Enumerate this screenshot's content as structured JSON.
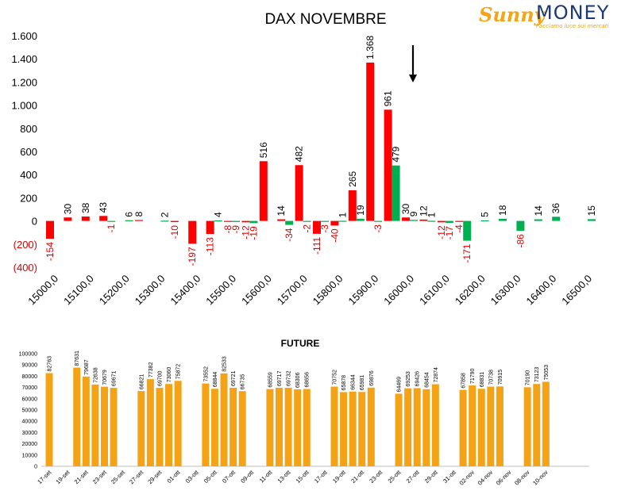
{
  "brand": {
    "name_part1": "Sunny",
    "name_part2": "MONEY",
    "tagline": "Facciamo luce sui mercati"
  },
  "chart_data": [
    {
      "type": "bar",
      "title": "DAX NOVEMBRE",
      "ylim": [
        -400,
        1600
      ],
      "yticks": [
        1600,
        1400,
        1200,
        1000,
        800,
        600,
        400,
        200,
        0,
        -200,
        -400
      ],
      "ytick_labels": [
        "1.600",
        "1.400",
        "1.200",
        "1.000",
        "800",
        "600",
        "400",
        "200",
        "0",
        "(200)",
        "(400)"
      ],
      "xtick_labels": [
        "15000,0",
        "15100,0",
        "15200,0",
        "15300,0",
        "15400,0",
        "15500,0",
        "15600,0",
        "15700,0",
        "15800,0",
        "15900,0",
        "16000,0",
        "16100,0",
        "16200,0",
        "16300,0",
        "16400,0",
        "16500,0"
      ],
      "strikes": [
        15000,
        15050,
        15100,
        15150,
        15200,
        15250,
        15300,
        15350,
        15400,
        15450,
        15500,
        15550,
        15600,
        15650,
        15700,
        15750,
        15800,
        15850,
        15900,
        15950,
        16000,
        16050,
        16100,
        16150,
        16200,
        16250,
        16300,
        16350,
        16400,
        16450,
        16500
      ],
      "series": [
        {
          "color": "#ff0000",
          "values": [
            -154,
            30,
            38,
            43,
            0,
            8,
            0,
            -10,
            -197,
            -113,
            -8,
            -12,
            516,
            14,
            482,
            -111,
            -40,
            265,
            1368,
            961,
            30,
            12,
            -12,
            -4,
            0,
            0,
            0,
            0,
            0,
            0,
            0
          ],
          "labels": [
            "-154",
            "30",
            "38",
            "43",
            "",
            "8",
            "",
            "-10",
            "-197",
            "-113",
            "-8",
            "-12",
            "516",
            "14",
            "482",
            "-111",
            "-40",
            "265",
            "1.368",
            "961",
            "30",
            "12",
            "-12",
            "-4",
            "",
            "",
            "",
            "",
            "",
            "",
            ""
          ]
        },
        {
          "color": "#00b050",
          "values": [
            0,
            0,
            0,
            -1,
            6,
            0,
            2,
            0,
            0,
            4,
            -9,
            -19,
            0,
            -34,
            -2,
            -3,
            1,
            19,
            -3,
            479,
            9,
            1,
            -17,
            -171,
            5,
            18,
            -86,
            14,
            36,
            0,
            15
          ],
          "labels": [
            "",
            "",
            "",
            "-1",
            "6",
            "",
            "2",
            "",
            "",
            "4",
            "-9",
            "-19",
            "",
            "-34",
            "-2",
            "-3",
            "1",
            "19",
            "-3",
            "479",
            "9",
            "1",
            "-17",
            "-171",
            "5",
            "18",
            "-86",
            "14",
            "36",
            "",
            "15"
          ]
        }
      ],
      "annotation": "arrow pointing down at 16000 strike"
    },
    {
      "type": "bar",
      "title": "FUTURE",
      "ylim": [
        0,
        100000
      ],
      "yticks": [
        0,
        10000,
        20000,
        30000,
        40000,
        50000,
        60000,
        70000,
        80000,
        90000,
        100000
      ],
      "color": "#f5a316",
      "categories": [
        "17-set",
        "18-set",
        "19-set",
        "20-set",
        "21-set",
        "22-set",
        "23-set",
        "24-set",
        "25-set",
        "26-set",
        "27-set",
        "28-set",
        "29-set",
        "30-set",
        "01-ott",
        "02-ott",
        "03-ott",
        "04-ott",
        "05-ott",
        "06-ott",
        "07-ott",
        "08-ott",
        "09-ott",
        "10-ott",
        "11-ott",
        "12-ott",
        "13-ott",
        "14-ott",
        "15-ott",
        "16-ott",
        "17-ott",
        "18-ott",
        "19-ott",
        "20-ott",
        "21-ott",
        "22-ott",
        "23-ott",
        "24-ott",
        "25-ott",
        "26-ott",
        "27-ott",
        "28-ott",
        "29-ott",
        "30-ott",
        "31-ott",
        "01-nov",
        "02-nov",
        "03-nov",
        "04-nov",
        "05-nov",
        "06-nov",
        "07-nov",
        "08-nov",
        "09-nov",
        "10-nov"
      ],
      "xtick_labels": [
        "17-set",
        "19-set",
        "21-set",
        "23-set",
        "25-set",
        "27-set",
        "29-set",
        "01-ott",
        "03-ott",
        "05-ott",
        "07-ott",
        "09-ott",
        "11-ott",
        "13-ott",
        "15-ott",
        "17-ott",
        "19-ott",
        "21-ott",
        "23-ott",
        "25-ott",
        "27-ott",
        "29-ott",
        "31-ott",
        "02-nov",
        "04-nov",
        "06-nov",
        "08-nov",
        "10-nov"
      ],
      "values": [
        82763,
        null,
        null,
        87631,
        79687,
        72638,
        70679,
        69671,
        null,
        null,
        66821,
        77382,
        69700,
        73060,
        75872,
        null,
        null,
        73552,
        68844,
        82533,
        69721,
        66735,
        null,
        null,
        68559,
        69717,
        69732,
        68306,
        68656,
        null,
        null,
        70752,
        65878,
        66344,
        65981,
        69876,
        null,
        null,
        64469,
        69253,
        69426,
        68454,
        72874,
        null,
        null,
        67858,
        71790,
        68831,
        70738,
        70915,
        null,
        null,
        70190,
        73123,
        75053
      ]
    }
  ]
}
